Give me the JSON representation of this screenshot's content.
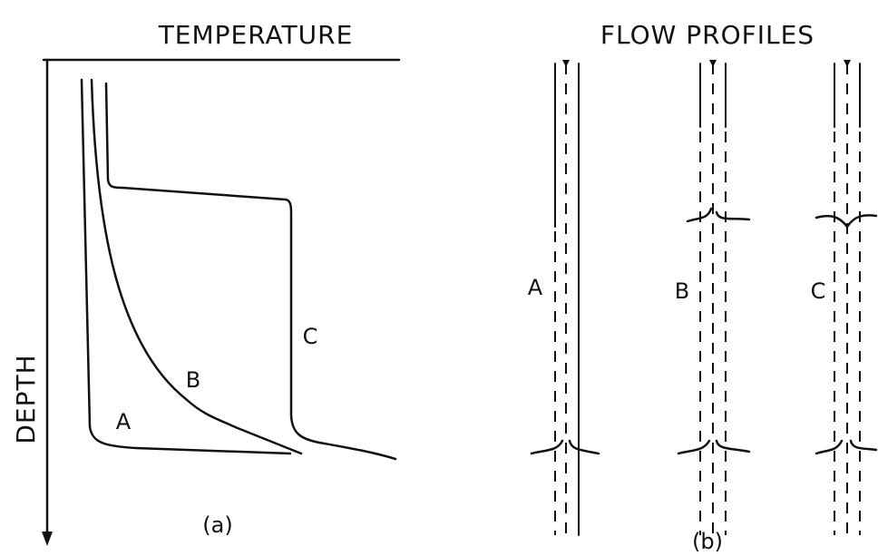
{
  "panel_a": {
    "title": "TEMPERATURE",
    "y_label": "DEPTH",
    "curve_labels": [
      "A",
      "B",
      "C"
    ],
    "caption": "(a)"
  },
  "panel_b": {
    "title": "FLOW PROFILES",
    "well_labels": [
      "A",
      "B",
      "C"
    ],
    "caption": "(b)"
  }
}
